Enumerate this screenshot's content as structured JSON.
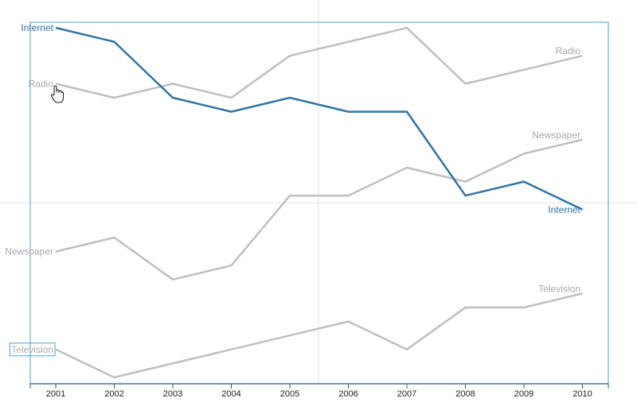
{
  "chart_data": {
    "type": "line",
    "x": [
      "2001",
      "2002",
      "2003",
      "2004",
      "2005",
      "2006",
      "2007",
      "2008",
      "2009",
      "2010"
    ],
    "series": [
      {
        "name": "Radio",
        "color": "#bfbfbf",
        "highlighted": false,
        "values": [
          8,
          7,
          8,
          7,
          10,
          11,
          12,
          8,
          9,
          10
        ]
      },
      {
        "name": "Newspaper",
        "color": "#bfbfbf",
        "highlighted": false,
        "values": [
          -4,
          -3,
          -6,
          -5,
          0,
          0,
          2,
          1,
          3,
          4
        ]
      },
      {
        "name": "Television",
        "color": "#bfbfbf",
        "highlighted": false,
        "label_boxed": true,
        "values": [
          -11,
          -13,
          -12,
          -11,
          -10,
          -9,
          -11,
          -8,
          -8,
          -7
        ]
      },
      {
        "name": "Internet",
        "color": "#2e74a6",
        "highlighted": true,
        "values": [
          12,
          11,
          7,
          6,
          7,
          6,
          6,
          0,
          1,
          -1
        ]
      }
    ],
    "ylim": [
      -13,
      12
    ],
    "axes": {
      "y_visible": false
    },
    "grid": "light",
    "legend": "direct labels at both line ends",
    "title": "",
    "xlabel": "",
    "ylabel": ""
  },
  "cursor": {
    "icon": "hand-pointer-icon"
  }
}
